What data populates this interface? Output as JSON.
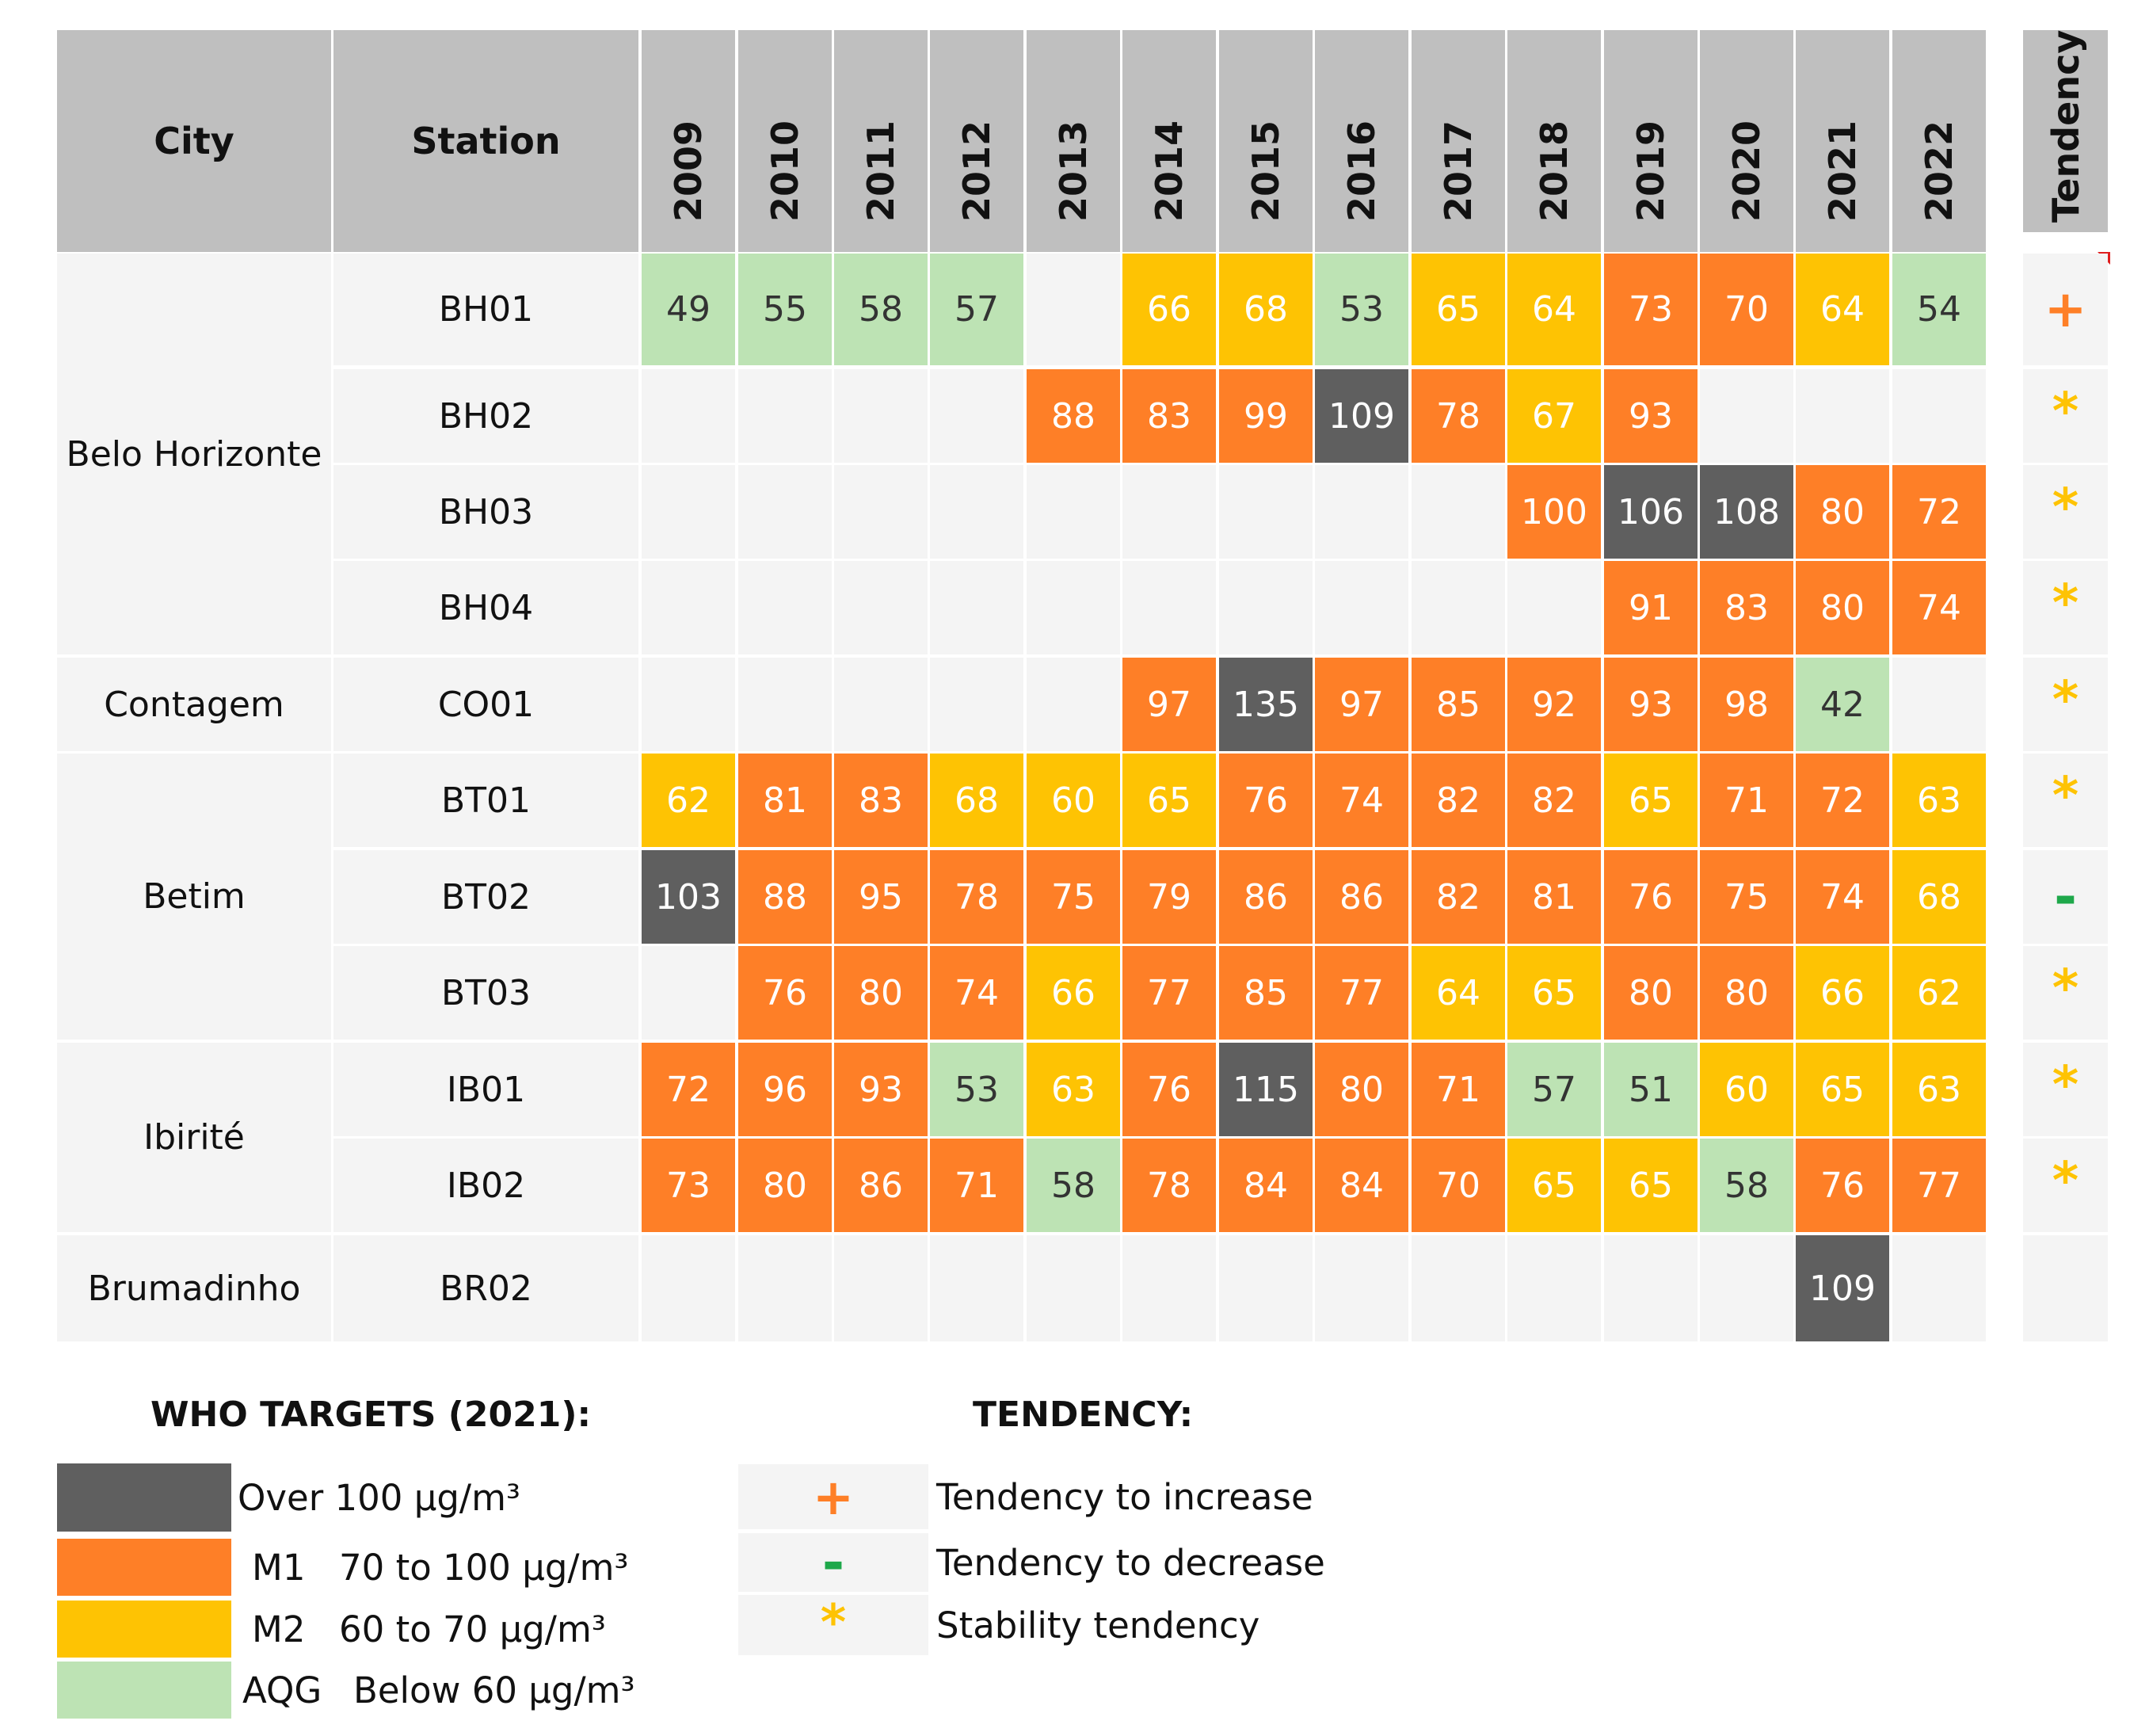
{
  "colors": {
    "over100": "#5f5f5f",
    "m1": "#fe7f27",
    "m2": "#fec303",
    "aqg": "#bde3b4",
    "empty": "#f4f4f4",
    "header": "#bfbfbf",
    "plus": "#fe7f27",
    "minus": "#1ea84a",
    "star": "#fec303"
  },
  "table": {
    "city_header": "City",
    "station_header": "Station",
    "tendency_header": "Tendency"
  },
  "chart_data": {
    "type": "table",
    "years": [
      "2009",
      "2010",
      "2011",
      "2012",
      "2013",
      "2014",
      "2015",
      "2016",
      "2017",
      "2018",
      "2019",
      "2020",
      "2021",
      "2022"
    ],
    "cities": [
      {
        "name": "Belo Horizonte",
        "stations": [
          "BH01",
          "BH02",
          "BH03",
          "BH04"
        ]
      },
      {
        "name": "Contagem",
        "stations": [
          "CO01"
        ]
      },
      {
        "name": "Betim",
        "stations": [
          "BT01",
          "BT02",
          "BT03"
        ]
      },
      {
        "name": "Ibirité",
        "stations": [
          "IB01",
          "IB02"
        ]
      },
      {
        "name": "Brumadinho",
        "stations": [
          "BR02"
        ]
      }
    ],
    "rows": [
      {
        "station": "BH01",
        "tendency": "+",
        "values": [
          49,
          55,
          58,
          57,
          null,
          66,
          68,
          53,
          65,
          64,
          73,
          70,
          64,
          54
        ]
      },
      {
        "station": "BH02",
        "tendency": "*",
        "values": [
          null,
          null,
          null,
          null,
          88,
          83,
          99,
          109,
          78,
          67,
          93,
          null,
          null,
          null
        ]
      },
      {
        "station": "BH03",
        "tendency": "*",
        "values": [
          null,
          null,
          null,
          null,
          null,
          null,
          null,
          null,
          null,
          100,
          106,
          108,
          80,
          72
        ]
      },
      {
        "station": "BH04",
        "tendency": "*",
        "values": [
          null,
          null,
          null,
          null,
          null,
          null,
          null,
          null,
          null,
          null,
          91,
          83,
          80,
          74
        ]
      },
      {
        "station": "CO01",
        "tendency": "*",
        "values": [
          null,
          null,
          null,
          null,
          null,
          97,
          135,
          97,
          85,
          92,
          93,
          98,
          42,
          null
        ]
      },
      {
        "station": "BT01",
        "tendency": "*",
        "values": [
          62,
          81,
          83,
          68,
          60,
          65,
          76,
          74,
          82,
          82,
          65,
          71,
          72,
          63
        ]
      },
      {
        "station": "BT02",
        "tendency": "-",
        "values": [
          103,
          88,
          95,
          78,
          75,
          79,
          86,
          86,
          82,
          81,
          76,
          75,
          74,
          68
        ]
      },
      {
        "station": "BT03",
        "tendency": "*",
        "values": [
          null,
          76,
          80,
          74,
          66,
          77,
          85,
          77,
          64,
          65,
          80,
          80,
          66,
          62
        ]
      },
      {
        "station": "IB01",
        "tendency": "*",
        "values": [
          72,
          96,
          93,
          53,
          63,
          76,
          115,
          80,
          71,
          57,
          51,
          60,
          65,
          63
        ]
      },
      {
        "station": "IB02",
        "tendency": "*",
        "values": [
          73,
          80,
          86,
          71,
          58,
          78,
          84,
          84,
          70,
          65,
          65,
          58,
          76,
          77
        ]
      },
      {
        "station": "BR02",
        "tendency": "",
        "values": [
          null,
          null,
          null,
          null,
          null,
          null,
          null,
          null,
          null,
          null,
          null,
          null,
          109,
          null
        ]
      }
    ],
    "thresholds": [
      {
        "key": "over100",
        "min": 100
      },
      {
        "key": "m1",
        "min": 70
      },
      {
        "key": "m2",
        "min": 60
      },
      {
        "key": "aqg",
        "min": 0
      }
    ]
  },
  "legend": {
    "who_title": "WHO TARGETS (2021):",
    "who_items": [
      {
        "color": "over100",
        "code": "",
        "text": "Over 100 µg/m³"
      },
      {
        "color": "m1",
        "code": "M1",
        "text": "70 to 100 µg/m³"
      },
      {
        "color": "m2",
        "code": "M2",
        "text": "60 to 70 µg/m³"
      },
      {
        "color": "aqg",
        "code": "AQG",
        "text": "Below 60 µg/m³"
      }
    ],
    "tendency_title": "TENDENCY:",
    "tendency_items": [
      {
        "symbol": "+",
        "text": "Tendency to increase"
      },
      {
        "symbol": "-",
        "text": "Tendency to decrease"
      },
      {
        "symbol": "*",
        "text": "Stability tendency"
      }
    ]
  }
}
